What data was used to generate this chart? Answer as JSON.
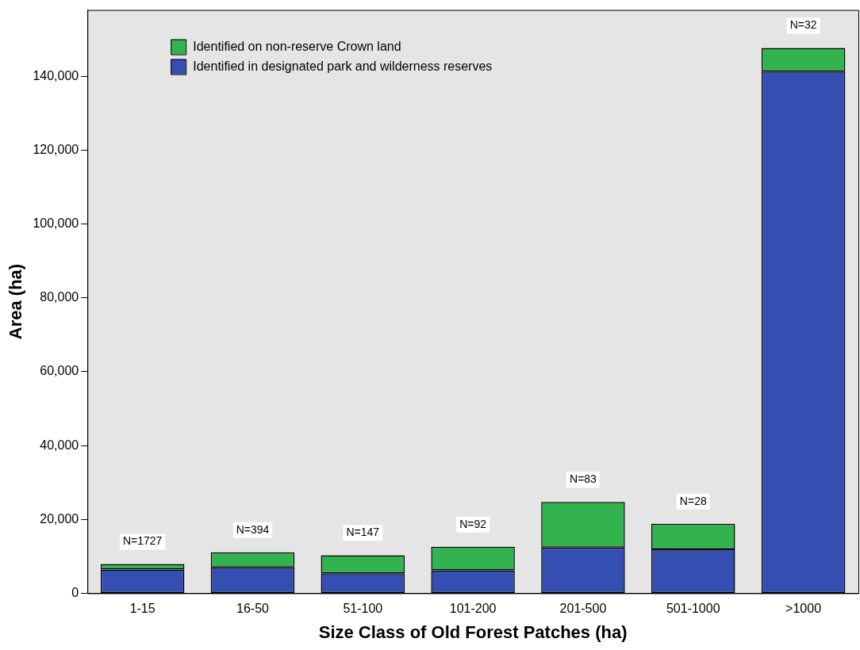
{
  "chart_data": {
    "type": "bar",
    "stacked": true,
    "xlabel": "Size Class of Old Forest Patches (ha)",
    "ylabel": "Area (ha)",
    "categories": [
      "1-15",
      "16-50",
      "51-100",
      "101-200",
      "201-500",
      "501-1000",
      ">1000"
    ],
    "series": [
      {
        "name": "Identified in designated park and wilderness reserves",
        "color": "#344fb1",
        "values": [
          6400,
          7000,
          5400,
          6200,
          12400,
          11900,
          141300
        ]
      },
      {
        "name": "Identified on non-reserve Crown land",
        "color": "#33b250",
        "values": [
          1500,
          4100,
          4900,
          6400,
          12300,
          6900,
          6400
        ]
      }
    ],
    "ylim": [
      0,
      158000
    ],
    "yticks": [
      {
        "value": 0,
        "label": "0"
      },
      {
        "value": 20000,
        "label": "20,000"
      },
      {
        "value": 40000,
        "label": "40,000"
      },
      {
        "value": 60000,
        "label": "60,000"
      },
      {
        "value": 80000,
        "label": "80,000"
      },
      {
        "value": 100000,
        "label": "100,000"
      },
      {
        "value": 120000,
        "label": "120,000"
      },
      {
        "value": 140000,
        "label": "140,000"
      }
    ],
    "grid": false,
    "legend": "top left",
    "annotations": [
      {
        "text": "N=1727",
        "x": "1-15",
        "y": 7900
      },
      {
        "text": "N=394",
        "x": "16-50",
        "y": 11100
      },
      {
        "text": "N=147",
        "x": "51-100",
        "y": 10300
      },
      {
        "text": "N=92",
        "x": "101-200",
        "y": 12600
      },
      {
        "text": "N=83",
        "x": "201-500",
        "y": 24700
      },
      {
        "text": "N=28",
        "x": "501-1000",
        "y": 18800
      },
      {
        "text": "N=32",
        "x": ">1000",
        "y": 147700
      }
    ]
  }
}
